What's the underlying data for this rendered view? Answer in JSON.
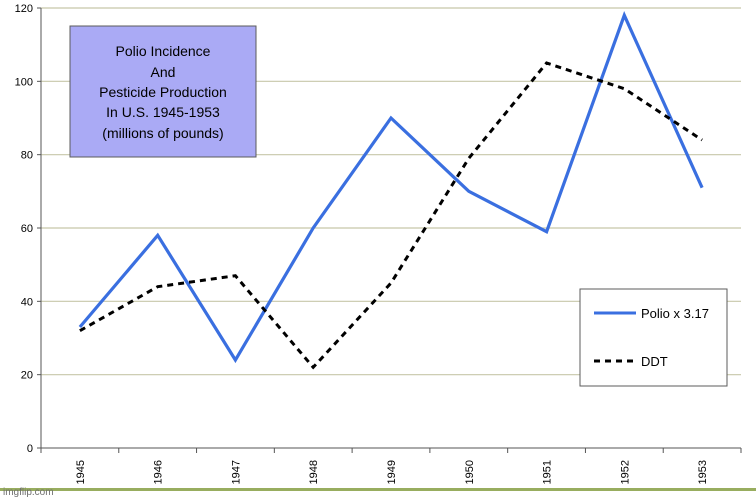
{
  "chart_data": {
    "type": "line",
    "title_lines": [
      "Polio Incidence",
      "And",
      "Pesticide Production",
      "In U.S. 1945-1953",
      "(millions of pounds)"
    ],
    "x": [
      "1945",
      "1946",
      "1947",
      "1948",
      "1949",
      "1950",
      "1951",
      "1952",
      "1953"
    ],
    "ylim": [
      0,
      120
    ],
    "yticks": [
      "0",
      "20",
      "40",
      "60",
      "80",
      "100",
      "120"
    ],
    "grid": true,
    "legend_position": "right",
    "series": [
      {
        "name": "Polio x 3.17",
        "values": [
          33,
          58,
          24,
          60,
          90,
          70,
          59,
          118,
          71
        ],
        "color": "#3a6fe0",
        "style": "solid"
      },
      {
        "name": "DDT",
        "values": [
          32,
          44,
          47,
          22,
          45,
          79,
          105,
          98,
          84
        ],
        "color": "#000000",
        "style": "dashed"
      }
    ],
    "colors": {
      "title_box_fill": "#aaaaf5",
      "grid": "#c7c7a9",
      "bottom_band": "#98ad5f"
    }
  },
  "watermark": "imgflip.com"
}
